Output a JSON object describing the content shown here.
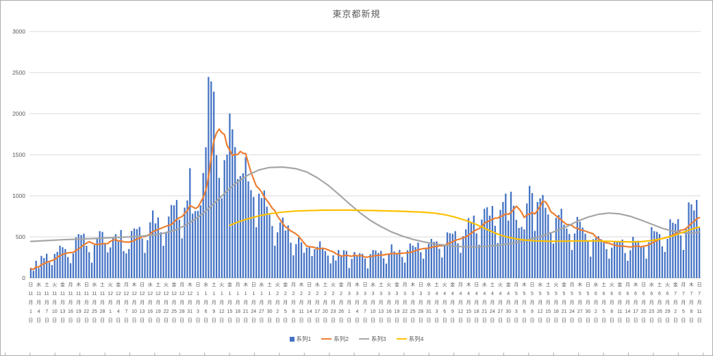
{
  "title": "東京都新規",
  "legend": [
    {
      "label": "系列1",
      "color": "#4472C4",
      "marker": "bar"
    },
    {
      "label": "系列2",
      "color": "#ED7D31",
      "marker": "line"
    },
    {
      "label": "系列3",
      "color": "#A5A5A5",
      "marker": "line"
    },
    {
      "label": "系列4",
      "color": "#FFC000",
      "marker": "line"
    }
  ],
  "chart_data": {
    "type": "bar",
    "title": "東京都新規",
    "xlabel": "",
    "ylabel": "",
    "ylim": [
      0,
      3000
    ],
    "y_ticks": [
      0,
      500,
      1000,
      1500,
      2000,
      2500,
      3000
    ],
    "grid": true,
    "legend_position": "bottom",
    "x_tick_interval_days": 3,
    "x_tick_labels": [
      [
        "日",
        11,
        1
      ],
      [
        "水",
        11,
        4
      ],
      [
        "土",
        11,
        7
      ],
      [
        "火",
        11,
        10
      ],
      [
        "金",
        11,
        13
      ],
      [
        "月",
        11,
        16
      ],
      [
        "木",
        11,
        19
      ],
      [
        "日",
        11,
        22
      ],
      [
        "水",
        11,
        25
      ],
      [
        "土",
        11,
        28
      ],
      [
        "火",
        12,
        1
      ],
      [
        "金",
        12,
        4
      ],
      [
        "月",
        12,
        7
      ],
      [
        "木",
        12,
        10
      ],
      [
        "日",
        12,
        13
      ],
      [
        "水",
        12,
        16
      ],
      [
        "土",
        12,
        19
      ],
      [
        "火",
        12,
        22
      ],
      [
        "金",
        12,
        25
      ],
      [
        "月",
        12,
        28
      ],
      [
        "木",
        12,
        31
      ],
      [
        "日",
        1,
        3
      ],
      [
        "水",
        1,
        6
      ],
      [
        "土",
        1,
        9
      ],
      [
        "火",
        1,
        12
      ],
      [
        "金",
        1,
        15
      ],
      [
        "月",
        1,
        18
      ],
      [
        "木",
        1,
        21
      ],
      [
        "日",
        1,
        24
      ],
      [
        "水",
        1,
        27
      ],
      [
        "土",
        1,
        30
      ],
      [
        "火",
        2,
        2
      ],
      [
        "金",
        2,
        5
      ],
      [
        "月",
        2,
        8
      ],
      [
        "木",
        2,
        11
      ],
      [
        "日",
        2,
        14
      ],
      [
        "水",
        2,
        17
      ],
      [
        "土",
        2,
        20
      ],
      [
        "火",
        2,
        23
      ],
      [
        "金",
        2,
        26
      ],
      [
        "月",
        3,
        1
      ],
      [
        "木",
        3,
        4
      ],
      [
        "日",
        3,
        7
      ],
      [
        "水",
        3,
        10
      ],
      [
        "土",
        3,
        13
      ],
      [
        "火",
        3,
        16
      ],
      [
        "金",
        3,
        19
      ],
      [
        "月",
        3,
        22
      ],
      [
        "木",
        3,
        25
      ],
      [
        "日",
        3,
        28
      ],
      [
        "水",
        3,
        31
      ],
      [
        "土",
        4,
        3
      ],
      [
        "火",
        4,
        6
      ],
      [
        "金",
        4,
        9
      ],
      [
        "月",
        4,
        12
      ],
      [
        "木",
        4,
        15
      ],
      [
        "日",
        4,
        18
      ],
      [
        "水",
        4,
        21
      ],
      [
        "土",
        4,
        24
      ],
      [
        "火",
        4,
        27
      ],
      [
        "金",
        4,
        30
      ],
      [
        "月",
        5,
        3
      ],
      [
        "木",
        5,
        6
      ],
      [
        "日",
        5,
        9
      ],
      [
        "水",
        5,
        12
      ],
      [
        "土",
        5,
        15
      ],
      [
        "火",
        5,
        18
      ],
      [
        "金",
        5,
        21
      ],
      [
        "月",
        5,
        24
      ],
      [
        "木",
        5,
        27
      ],
      [
        "日",
        5,
        30
      ],
      [
        "水",
        6,
        2
      ],
      [
        "土",
        6,
        5
      ],
      [
        "火",
        6,
        8
      ],
      [
        "金",
        6,
        11
      ],
      [
        "月",
        6,
        14
      ],
      [
        "木",
        6,
        17
      ],
      [
        "日",
        6,
        20
      ],
      [
        "水",
        6,
        23
      ],
      [
        "土",
        6,
        26
      ],
      [
        "火",
        6,
        29
      ],
      [
        "金",
        7,
        2
      ],
      [
        "月",
        7,
        5
      ],
      [
        "木",
        7,
        8
      ],
      [
        "日",
        7,
        11
      ]
    ],
    "series": [
      {
        "name": "系列1",
        "type": "bar",
        "color": "#4472C4",
        "values": [
          116,
          87,
          209,
          122,
          269,
          242,
          294,
          189,
          157,
          293,
          317,
          393,
          374,
          352,
          255,
          180,
          298,
          493,
          534,
          522,
          539,
          391,
          314,
          186,
          401,
          481,
          570,
          561,
          418,
          311,
          372,
          500,
          533,
          449,
          584,
          327,
          299,
          352,
          572,
          602,
          595,
          621,
          480,
          305,
          460,
          678,
          822,
          664,
          736,
          556,
          392,
          563,
          748,
          888,
          884,
          949,
          708,
          481,
          856,
          944,
          1337,
          783,
          814,
          816,
          884,
          1278,
          1591,
          2447,
          2392,
          2268,
          1494,
          1219,
          970,
          1433,
          1502,
          2001,
          1809,
          1592,
          1204,
          1240,
          1274,
          1471,
          1175,
          1070,
          986,
          618,
          1026,
          973,
          1064,
          868,
          769,
          633,
          393,
          556,
          676,
          734,
          577,
          639,
          429,
          276,
          412,
          491,
          434,
          307,
          369,
          371,
          266,
          350,
          378,
          445,
          353,
          327,
          272,
          178,
          275,
          213,
          340,
          270,
          337,
          329,
          121,
          232,
          316,
          279,
          301,
          293,
          237,
          116,
          290,
          340,
          335,
          304,
          330,
          239,
          175,
          300,
          409,
          323,
          303,
          342,
          256,
          187,
          337,
          420,
          394,
          376,
          430,
          313,
          234,
          364,
          414,
          475,
          440,
          446,
          355,
          249,
          399,
          555,
          545,
          537,
          570,
          421,
          306,
          510,
          591,
          729,
          667,
          759,
          543,
          405,
          711,
          843,
          861,
          759,
          876,
          635,
          425,
          828,
          925,
          1027,
          698,
          1050,
          879,
          708,
          609,
          621,
          591,
          907,
          1121,
          1032,
          573,
          925,
          969,
          1010,
          854,
          772,
          542,
          419,
          732,
          766,
          843,
          649,
          602,
          535,
          340,
          542,
          743,
          684,
          614,
          539,
          448,
          260,
          471,
          487,
          508,
          472,
          436,
          351,
          235,
          369,
          440,
          439,
          435,
          467,
          304,
          209,
          337,
          501,
          452,
          453,
          388,
          376,
          236,
          435,
          619,
          570,
          562,
          534,
          386,
          317,
          476,
          714,
          673,
          660,
          716,
          518,
          342,
          593,
          920,
          896,
          822,
          950,
          614
        ]
      },
      {
        "name": "系列2",
        "type": "line",
        "color": "#ED7D31",
        "derived": "ma7"
      },
      {
        "name": "系列3",
        "type": "line",
        "color": "#A5A5A5",
        "points": [
          [
            0,
            445
          ],
          [
            12,
            465
          ],
          [
            24,
            480
          ],
          [
            34,
            495
          ],
          [
            42,
            510
          ],
          [
            48,
            530
          ],
          [
            54,
            575
          ],
          [
            58,
            635
          ],
          [
            62,
            715
          ],
          [
            66,
            815
          ],
          [
            70,
            935
          ],
          [
            74,
            1060
          ],
          [
            78,
            1170
          ],
          [
            82,
            1255
          ],
          [
            86,
            1315
          ],
          [
            90,
            1345
          ],
          [
            95,
            1350
          ],
          [
            100,
            1330
          ],
          [
            104,
            1290
          ],
          [
            108,
            1220
          ],
          [
            112,
            1130
          ],
          [
            116,
            1020
          ],
          [
            120,
            905
          ],
          [
            124,
            795
          ],
          [
            128,
            700
          ],
          [
            132,
            625
          ],
          [
            136,
            560
          ],
          [
            140,
            510
          ],
          [
            144,
            470
          ],
          [
            148,
            440
          ],
          [
            152,
            415
          ],
          [
            157,
            395
          ],
          [
            162,
            382
          ],
          [
            167,
            378
          ],
          [
            172,
            385
          ],
          [
            177,
            400
          ],
          [
            182,
            425
          ],
          [
            187,
            460
          ],
          [
            192,
            505
          ],
          [
            197,
            560
          ],
          [
            202,
            625
          ],
          [
            206,
            690
          ],
          [
            210,
            740
          ],
          [
            214,
            775
          ],
          [
            218,
            790
          ],
          [
            222,
            780
          ],
          [
            226,
            750
          ],
          [
            230,
            705
          ],
          [
            234,
            655
          ],
          [
            238,
            605
          ],
          [
            242,
            570
          ],
          [
            246,
            550
          ],
          [
            249,
            545
          ],
          [
            252,
            560
          ]
        ]
      },
      {
        "name": "系列4",
        "type": "line",
        "color": "#FFC000",
        "points": [
          [
            75,
            640
          ],
          [
            78,
            680
          ],
          [
            82,
            722
          ],
          [
            86,
            756
          ],
          [
            90,
            782
          ],
          [
            95,
            802
          ],
          [
            100,
            815
          ],
          [
            110,
            825
          ],
          [
            120,
            826
          ],
          [
            130,
            820
          ],
          [
            140,
            812
          ],
          [
            148,
            800
          ],
          [
            152,
            790
          ],
          [
            156,
            770
          ],
          [
            160,
            740
          ],
          [
            164,
            700
          ],
          [
            168,
            650
          ],
          [
            171,
            605
          ],
          [
            174,
            560
          ],
          [
            177,
            522
          ],
          [
            180,
            495
          ],
          [
            183,
            475
          ],
          [
            186,
            462
          ],
          [
            190,
            452
          ],
          [
            196,
            446
          ],
          [
            202,
            448
          ],
          [
            208,
            452
          ],
          [
            214,
            450
          ],
          [
            220,
            444
          ],
          [
            226,
            438
          ],
          [
            230,
            442
          ],
          [
            234,
            456
          ],
          [
            238,
            478
          ],
          [
            242,
            512
          ],
          [
            245,
            546
          ],
          [
            248,
            582
          ],
          [
            251,
            612
          ],
          [
            252,
            618
          ]
        ]
      }
    ]
  },
  "colors": {
    "gridline": "#d9d9d9",
    "axis_line": "#bfbfbf",
    "text": "#595959"
  }
}
